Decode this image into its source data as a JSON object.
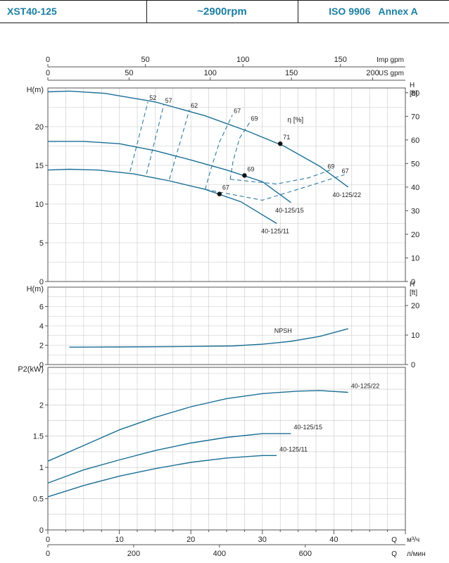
{
  "header": {
    "model": "XST40-125",
    "speed": "~2900rpm",
    "standard": "ISO 9906   Annex A"
  },
  "colors": {
    "curve": "#1a6f96",
    "header_text": "#1a7fa0",
    "grid": "#c8c8c8",
    "axis": "#555555"
  },
  "chart_data": [
    {
      "type": "line",
      "id": "head",
      "ylabel": "H(m)",
      "ylabel_right": [
        "H",
        "[ft]"
      ],
      "ylim": [
        0,
        25
      ],
      "yticks": [
        0,
        5,
        10,
        15,
        20
      ],
      "yticks_ft": [
        0,
        10,
        20,
        30,
        40,
        50,
        60,
        70,
        80
      ],
      "series": [
        {
          "name": "40-125/22",
          "x": [
            0,
            3,
            8,
            15,
            22,
            28,
            33,
            38,
            42
          ],
          "y": [
            24.5,
            24.6,
            24.3,
            23.2,
            21.4,
            19.4,
            17.5,
            14.9,
            12.2
          ]
        },
        {
          "name": "40-125/15",
          "x": [
            0,
            5,
            10,
            15,
            20,
            25,
            30,
            34
          ],
          "y": [
            18.1,
            18.1,
            17.8,
            16.9,
            15.7,
            14.4,
            12.9,
            10.2
          ]
        },
        {
          "name": "40-125/11",
          "x": [
            0,
            3,
            7,
            12,
            17,
            22,
            27,
            32
          ],
          "y": [
            14.4,
            14.5,
            14.4,
            13.9,
            13.0,
            11.9,
            10.3,
            7.5
          ]
        }
      ],
      "efficiency_label": "η [%]",
      "efficiency_points": [
        {
          "label": "71",
          "x": 32.5,
          "y": 17.8
        },
        {
          "label": "69",
          "x": 27.5,
          "y": 13.7
        },
        {
          "label": "67",
          "x": 24.0,
          "y": 11.3
        }
      ],
      "iso_efficiency": [
        {
          "label": "52",
          "x": [
            11.5,
            14
          ],
          "y": [
            14.2,
            23.2
          ]
        },
        {
          "label": "57",
          "x": [
            13.8,
            16.2
          ],
          "y": [
            13.9,
            22.8
          ]
        },
        {
          "label": "62",
          "x": [
            17.0,
            19.8
          ],
          "y": [
            13.2,
            22.2
          ]
        },
        {
          "label": "67",
          "x": [
            22.0,
            22.8,
            24.0,
            25.8,
            30,
            36,
            41.5
          ],
          "y": [
            11.9,
            14.5,
            18.0,
            21.5,
            10.5,
            12.2,
            13.8
          ]
        },
        {
          "label": "69",
          "x": [
            25.5,
            25.9,
            26.8,
            28.2,
            32,
            36.5,
            39.5
          ],
          "y": [
            13.2,
            15.5,
            18.5,
            20.5,
            12.6,
            13.4,
            14.4
          ]
        }
      ]
    },
    {
      "type": "line",
      "id": "npsh",
      "ylabel": "H(m)",
      "ylabel_right": [
        "H",
        "[ft]"
      ],
      "ylim": [
        0,
        8
      ],
      "yticks": [
        0,
        2,
        4,
        6
      ],
      "yticks_ft": [
        0,
        10,
        20
      ],
      "series": [
        {
          "name": "NPSH",
          "x": [
            3,
            10,
            20,
            26,
            30,
            34,
            38,
            42
          ],
          "y": [
            1.8,
            1.82,
            1.87,
            1.93,
            2.1,
            2.4,
            2.9,
            3.7
          ]
        }
      ]
    },
    {
      "type": "line",
      "id": "power",
      "ylabel": "P2(kW)",
      "ylim": [
        0,
        2.6
      ],
      "yticks": [
        0,
        0.5,
        1,
        1.5,
        2
      ],
      "series": [
        {
          "name": "40-125/22",
          "x": [
            0,
            5,
            10,
            15,
            20,
            25,
            30,
            35,
            38,
            42
          ],
          "y": [
            1.1,
            1.35,
            1.6,
            1.8,
            1.97,
            2.1,
            2.18,
            2.22,
            2.23,
            2.2
          ]
        },
        {
          "name": "40-125/15",
          "x": [
            0,
            5,
            10,
            15,
            20,
            25,
            30,
            34
          ],
          "y": [
            0.75,
            0.96,
            1.12,
            1.27,
            1.39,
            1.48,
            1.54,
            1.54
          ]
        },
        {
          "name": "40-125/11",
          "x": [
            0,
            5,
            10,
            15,
            20,
            25,
            30,
            32
          ],
          "y": [
            0.53,
            0.71,
            0.86,
            0.98,
            1.08,
            1.15,
            1.19,
            1.19
          ]
        }
      ]
    }
  ],
  "axes": {
    "q_label": "Q",
    "m3h_unit": "м³/ч",
    "lmin_unit": "л/мин",
    "imp_label": "Imp gpm",
    "us_label": "US gpm",
    "m3h_ticks": [
      0,
      10,
      20,
      30,
      40
    ],
    "lmin_ticks": [
      0,
      200,
      400,
      600
    ],
    "imp_ticks": [
      0,
      50,
      100,
      150
    ],
    "us_ticks": [
      0,
      50,
      100,
      150,
      200
    ]
  }
}
